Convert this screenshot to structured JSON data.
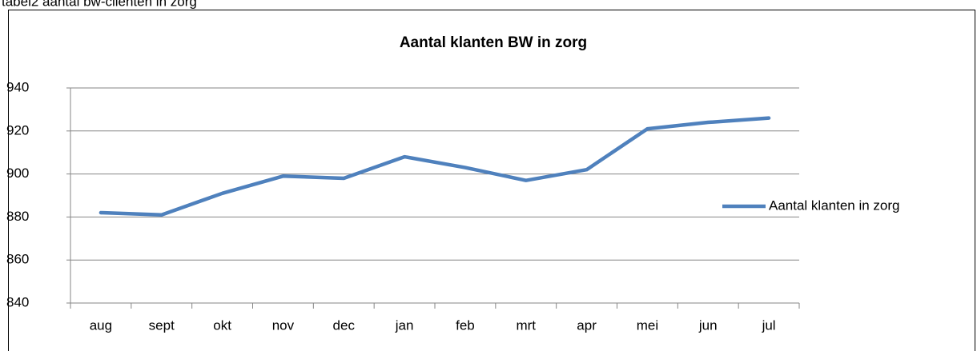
{
  "caption": "tabel2 aantal bw-cliënten in zorg",
  "chart_data": {
    "type": "line",
    "title": "Aantal klanten BW in zorg",
    "categories": [
      "aug",
      "sept",
      "okt",
      "nov",
      "dec",
      "jan",
      "feb",
      "mrt",
      "apr",
      "mei",
      "jun",
      "jul"
    ],
    "series": [
      {
        "name": "Aantal klanten in zorg",
        "color": "#4f81bd",
        "values": [
          882,
          881,
          891,
          899,
          898,
          908,
          903,
          897,
          902,
          921,
          924,
          926
        ]
      }
    ],
    "ylim": [
      840,
      940
    ],
    "yticks": [
      840,
      860,
      880,
      900,
      920,
      940
    ],
    "grid": true,
    "legend": "right"
  }
}
